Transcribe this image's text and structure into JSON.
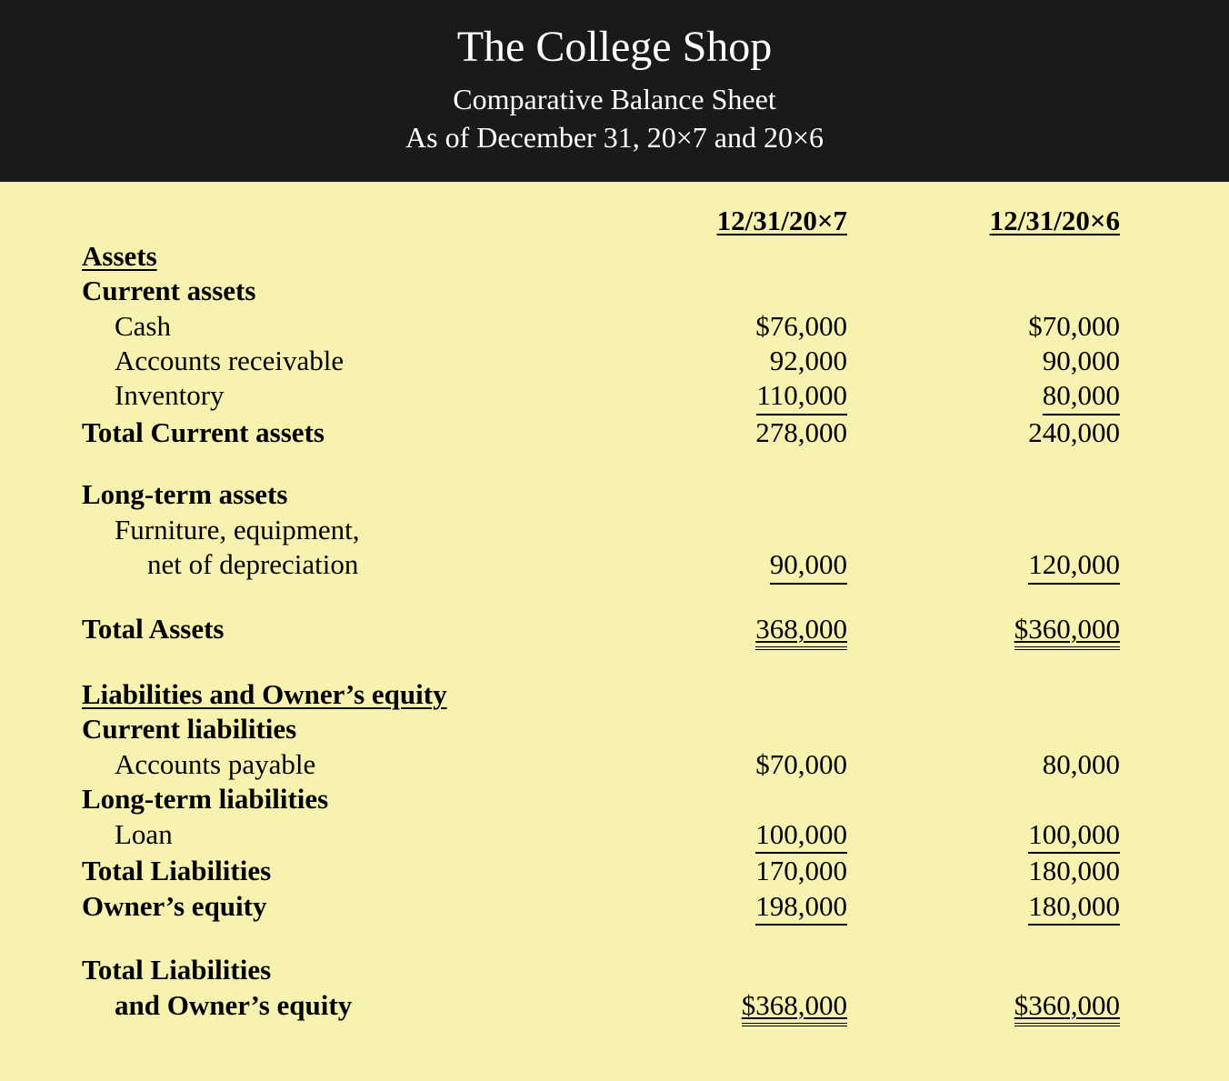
{
  "colors": {
    "header_bg": "#1a1a1a",
    "header_text": "#ffffff",
    "body_bg": "#f8f2b0",
    "body_text": "#000000"
  },
  "typography": {
    "title_fontsize": 48,
    "subtitle_fontsize": 32,
    "body_fontsize": 31,
    "font_family": "Palatino Linotype"
  },
  "header": {
    "title": "The College Shop",
    "subtitle1": "Comparative Balance Sheet",
    "subtitle2": "As of December 31, 20×7 and 20×6"
  },
  "columns": {
    "col1": "12/31/20×7",
    "col2": "12/31/20×6"
  },
  "sections": {
    "assets_heading": "Assets",
    "current_assets_heading": "Current assets",
    "cash": {
      "label": "Cash",
      "v1": "$76,000",
      "v2": "$70,000"
    },
    "ar": {
      "label": "Accounts receivable",
      "v1": "92,000",
      "v2": "90,000"
    },
    "inventory": {
      "label": "Inventory",
      "v1": "110,000",
      "v2": "80,000"
    },
    "total_current_assets": {
      "label": "Total Current assets",
      "v1": "278,000",
      "v2": "240,000"
    },
    "longterm_assets_heading": "Long-term assets",
    "furniture_l1": "Furniture, equipment,",
    "furniture_l2": "net of depreciation",
    "furniture": {
      "v1": "90,000",
      "v2": "120,000"
    },
    "total_assets": {
      "label": "Total Assets",
      "v1": "368,000",
      "v2": "$360,000"
    },
    "liab_equity_heading": "Liabilities and Owner’s equity",
    "current_liab_heading": "Current liabilities",
    "ap": {
      "label": "Accounts payable",
      "v1": "$70,000",
      "v2": "80,000"
    },
    "longterm_liab_heading": "Long-term liabilities",
    "loan": {
      "label": "Loan",
      "v1": "100,000",
      "v2": "100,000"
    },
    "total_liab": {
      "label": "Total Liabilities",
      "v1": "170,000",
      "v2": "180,000"
    },
    "owners_equity": {
      "label": "Owner’s equity",
      "v1": "198,000",
      "v2": "180,000"
    },
    "total_liab_equity_l1": "Total Liabilities",
    "total_liab_equity_l2": "and Owner’s equity",
    "total_liab_equity": {
      "v1": "$368,000",
      "v2": "$360,000"
    }
  }
}
